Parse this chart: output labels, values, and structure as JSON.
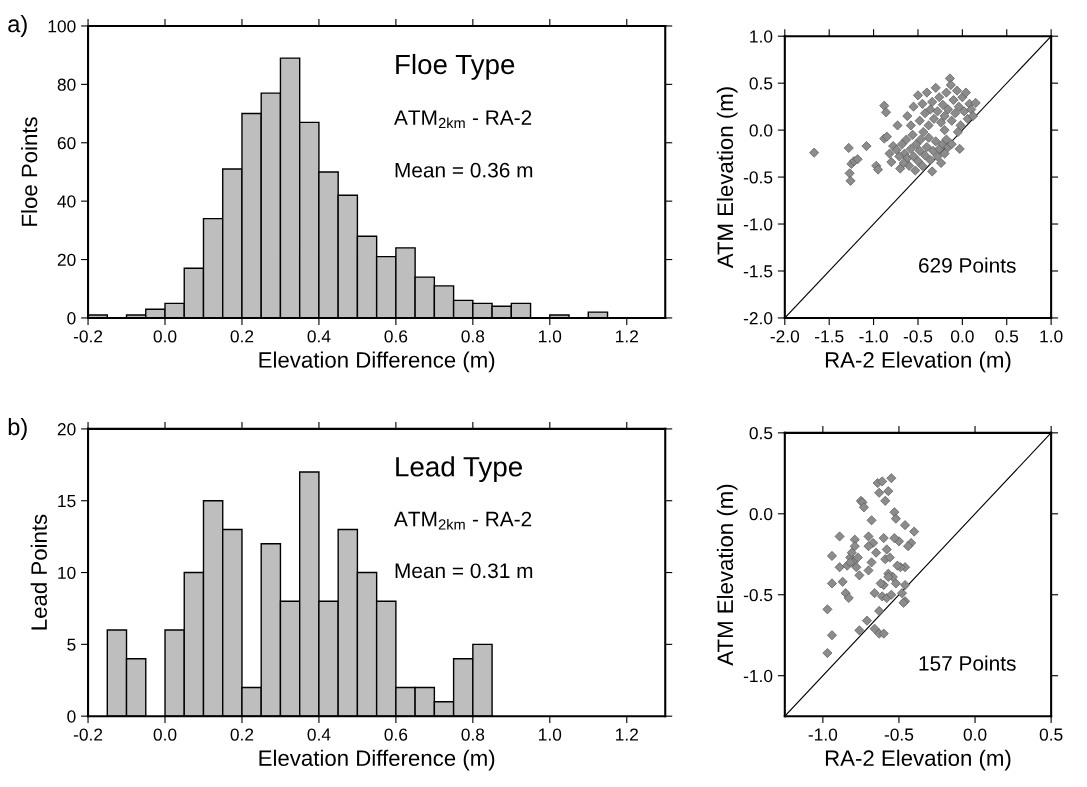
{
  "chart_data": [
    {
      "type": "histogram",
      "xlabel": "Elevation Difference (m)",
      "ylabel": "Floe Points",
      "color": "#bebebe",
      "bins": [
        -0.2,
        -0.15,
        -0.1,
        -0.05,
        0,
        0.05,
        0.1,
        0.15,
        0.2,
        0.25,
        0.3,
        0.35,
        0.4,
        0.45,
        0.5,
        0.55,
        0.6,
        0.65,
        0.7,
        0.75,
        0.8,
        0.85,
        0.9,
        0.95,
        1.0,
        1.05,
        1.1,
        1.15,
        1.2,
        1.25,
        1.3
      ],
      "values": [
        1,
        0,
        1,
        3,
        5,
        17,
        34,
        51,
        70,
        77,
        89,
        67,
        50,
        42,
        28,
        21,
        24,
        14,
        11,
        6,
        5,
        4,
        5,
        0,
        1,
        0,
        2,
        0,
        0,
        0
      ],
      "xlim": [
        -0.2,
        1.3
      ],
      "xticks": [
        -0.2,
        {
          "value": 0,
          "label": "0.0"
        },
        0.2,
        0.4,
        0.6,
        0.8,
        {
          "value": 1,
          "label": "1.0"
        },
        1.2
      ],
      "ylim": [
        0,
        100
      ],
      "yticks": [
        0,
        20,
        40,
        60,
        80,
        100
      ],
      "grid": false,
      "annotations": [
        "a)",
        "Floe Type",
        "ATM$_{2km}$ - RA-2",
        "Mean = 0.36 m"
      ]
    },
    {
      "type": "scatter",
      "xlabel": "RA-2 Elevation (m)",
      "ylabel": "ATM Elevation (m)",
      "grid": false,
      "xlim": [
        -2,
        1
      ],
      "xticks": [
        {
          "value": -2,
          "label": "-2.0"
        },
        -1.5,
        {
          "value": -1,
          "label": "-1.0"
        },
        -0.5,
        {
          "value": 0,
          "label": "0.0"
        },
        0.5,
        {
          "value": 1,
          "label": "1.0"
        }
      ],
      "ylim": [
        -2,
        1
      ],
      "yticks": [
        {
          "value": -2,
          "label": "-2.0"
        },
        -1.5,
        {
          "value": -1,
          "label": "-1.0"
        },
        -0.5,
        {
          "value": 0,
          "label": "0.0"
        },
        0.5,
        {
          "value": 1,
          "label": "1.0"
        }
      ],
      "annotations": [
        "629 Points"
      ],
      "series": [
        {
          "type": "scatter",
          "marker": "diamond",
          "color": "#8c8c8c",
          "x": [
            -1.67,
            -1.28,
            -1.27,
            -1.26,
            -1.25,
            -1.22,
            -1.18,
            -1.08,
            -0.97,
            -0.95,
            -0.88,
            -0.86,
            -0.88,
            -0.85,
            -0.82,
            -0.8,
            -0.78,
            -0.74,
            -0.73,
            -0.7,
            -0.68,
            -0.65,
            -0.63,
            -0.62,
            -0.6,
            -0.58,
            -0.56,
            -0.55,
            -0.53,
            -0.52,
            -0.5,
            -0.48,
            -0.47,
            -0.45,
            -0.44,
            -0.42,
            -0.4,
            -0.38,
            -0.36,
            -0.34,
            -0.33,
            -0.3,
            -0.28,
            -0.26,
            -0.24,
            -0.22,
            -0.2,
            -0.18,
            -0.16,
            -0.12,
            -0.03,
            -0.58,
            -0.66,
            -0.71,
            -0.62,
            -0.55,
            -0.5,
            -0.48,
            -0.45,
            -0.42,
            -0.4,
            -0.38,
            -0.36,
            -0.34,
            -0.32,
            -0.3,
            -0.28,
            -0.26,
            -0.24,
            -0.22,
            -0.2,
            -0.18,
            -0.16,
            -0.14,
            -0.13,
            -0.12,
            -0.1,
            -0.08,
            -0.06,
            -0.04,
            -0.02,
            0.0,
            0.02,
            0.04,
            0.06,
            0.08,
            0.1,
            0.12,
            0.15,
            -0.05,
            -0.2
          ],
          "values": [
            -0.24,
            -0.19,
            -0.46,
            -0.54,
            -0.36,
            -0.33,
            -0.31,
            -0.17,
            -0.38,
            -0.42,
            0.26,
            0.19,
            -0.09,
            -0.07,
            -0.25,
            -0.34,
            -0.17,
            -0.21,
            0.05,
            -0.41,
            -0.15,
            -0.25,
            -0.1,
            -0.3,
            -0.38,
            -0.2,
            -0.05,
            -0.28,
            -0.43,
            -0.15,
            -0.33,
            -0.22,
            -0.1,
            -0.38,
            -0.02,
            -0.27,
            -0.18,
            -0.08,
            -0.32,
            -0.44,
            -0.22,
            -0.12,
            -0.28,
            -0.2,
            -0.35,
            -0.15,
            -0.25,
            -0.1,
            -0.18,
            -0.15,
            -0.2,
            0.05,
            -0.35,
            -0.28,
            0.15,
            0.25,
            0.37,
            0.1,
            0.28,
            0.18,
            0.4,
            0.05,
            0.22,
            0.3,
            0.12,
            0.45,
            0.2,
            0.35,
            0.08,
            0.27,
            0.15,
            0.4,
            0.22,
            0.55,
            0.48,
            0.1,
            0.32,
            0.18,
            0.42,
            0.25,
            0.05,
            0.35,
            0.2,
            0.4,
            0.12,
            0.28,
            0.22,
            0.15,
            0.29,
            -0.02,
            0.0
          ]
        },
        {
          "type": "line",
          "color": "#000000",
          "x": [
            -2,
            1
          ],
          "values": [
            -2,
            1
          ]
        }
      ]
    },
    {
      "type": "histogram",
      "xlabel": "Elevation Difference (m)",
      "ylabel": "Lead Points",
      "color": "#bebebe",
      "bins": [
        -0.2,
        -0.15,
        -0.1,
        -0.05,
        0,
        0.05,
        0.1,
        0.15,
        0.2,
        0.25,
        0.3,
        0.35,
        0.4,
        0.45,
        0.5,
        0.55,
        0.6,
        0.65,
        0.7,
        0.75,
        0.8,
        0.85,
        0.9,
        0.95,
        1.0,
        1.05,
        1.1,
        1.15,
        1.2,
        1.25,
        1.3
      ],
      "values": [
        0,
        6,
        4,
        0,
        6,
        10,
        15,
        13,
        2,
        12,
        8,
        17,
        8,
        13,
        10,
        8,
        2,
        2,
        1,
        4,
        5,
        0,
        0,
        0,
        0,
        0,
        0,
        0,
        0,
        0
      ],
      "xlim": [
        -0.2,
        1.3
      ],
      "xticks": [
        -0.2,
        {
          "value": 0,
          "label": "0.0"
        },
        0.2,
        0.4,
        0.6,
        0.8,
        {
          "value": 1,
          "label": "1.0"
        },
        1.2
      ],
      "ylim": [
        0,
        20
      ],
      "yticks": [
        0,
        5,
        10,
        15,
        20
      ],
      "grid": false,
      "annotations": [
        "b)",
        "Lead Type",
        "ATM$_{2km}$ - RA-2",
        "Mean = 0.31 m"
      ]
    },
    {
      "type": "scatter",
      "xlabel": "RA-2 Elevation (m)",
      "ylabel": "ATM Elevation (m)",
      "grid": false,
      "xlim": [
        -1.25,
        0.5
      ],
      "xticks": [
        {
          "value": -1,
          "label": "-1.0"
        },
        -0.5,
        {
          "value": 0,
          "label": "0.0"
        },
        0.5
      ],
      "ylim": [
        -1.25,
        0.5
      ],
      "yticks": [
        {
          "value": -1,
          "label": "-1.0"
        },
        -0.5,
        {
          "value": 0,
          "label": "0.0"
        },
        0.5
      ],
      "annotations": [
        "157 Points"
      ],
      "series": [
        {
          "type": "scatter",
          "marker": "diamond",
          "color": "#8c8c8c",
          "x": [
            -0.97,
            -0.97,
            -0.94,
            -0.94,
            -0.94,
            -0.89,
            -0.87,
            -0.85,
            -0.83,
            -0.82,
            -0.8,
            -0.79,
            -0.79,
            -0.78,
            -0.76,
            -0.75,
            -0.74,
            -0.73,
            -0.7,
            -0.7,
            -0.71,
            -0.68,
            -0.67,
            -0.66,
            -0.66,
            -0.64,
            -0.61,
            -0.63,
            -0.63,
            -0.6,
            -0.63,
            -0.59,
            -0.57,
            -0.55,
            -0.53,
            -0.52,
            -0.46,
            -0.4,
            -0.42,
            -0.44,
            -0.46,
            -0.47,
            -0.46,
            -0.46,
            -0.48,
            -0.6,
            -0.58,
            -0.59,
            -0.56,
            -0.54,
            -0.57,
            -0.6,
            -0.61,
            -0.58,
            -0.55,
            -0.52,
            -0.5,
            -0.49,
            -0.53,
            -0.51,
            -0.57,
            -0.62,
            -0.65,
            -0.68,
            -0.7,
            -0.77,
            -0.81,
            -0.84,
            -0.89,
            -0.82,
            -0.76
          ],
          "values": [
            -0.59,
            -0.86,
            -0.43,
            -0.75,
            -0.26,
            -0.14,
            -0.42,
            -0.49,
            -0.52,
            -0.27,
            -0.3,
            -0.16,
            -0.2,
            -0.33,
            -0.72,
            0.08,
            0.07,
            0.04,
            -0.14,
            -0.35,
            -0.66,
            -0.04,
            -0.18,
            -0.49,
            -0.71,
            0.19,
            0.2,
            0.13,
            -0.74,
            -0.74,
            -0.6,
            0.08,
            0.14,
            0.22,
            0.01,
            -0.03,
            -0.07,
            -0.11,
            -0.18,
            -0.2,
            -0.54,
            -0.55,
            -0.44,
            -0.33,
            -0.49,
            -0.15,
            -0.22,
            -0.28,
            -0.27,
            -0.39,
            -0.37,
            -0.44,
            -0.51,
            -0.52,
            -0.5,
            -0.43,
            -0.17,
            -0.33,
            -0.15,
            -0.32,
            -0.39,
            -0.43,
            -0.24,
            -0.3,
            -0.2,
            -0.27,
            -0.24,
            -0.32,
            -0.33,
            -0.3,
            -0.38
          ]
        },
        {
          "type": "line",
          "color": "#000000",
          "x": [
            -1.25,
            0.5
          ],
          "values": [
            -1.25,
            0.5
          ]
        }
      ]
    }
  ]
}
